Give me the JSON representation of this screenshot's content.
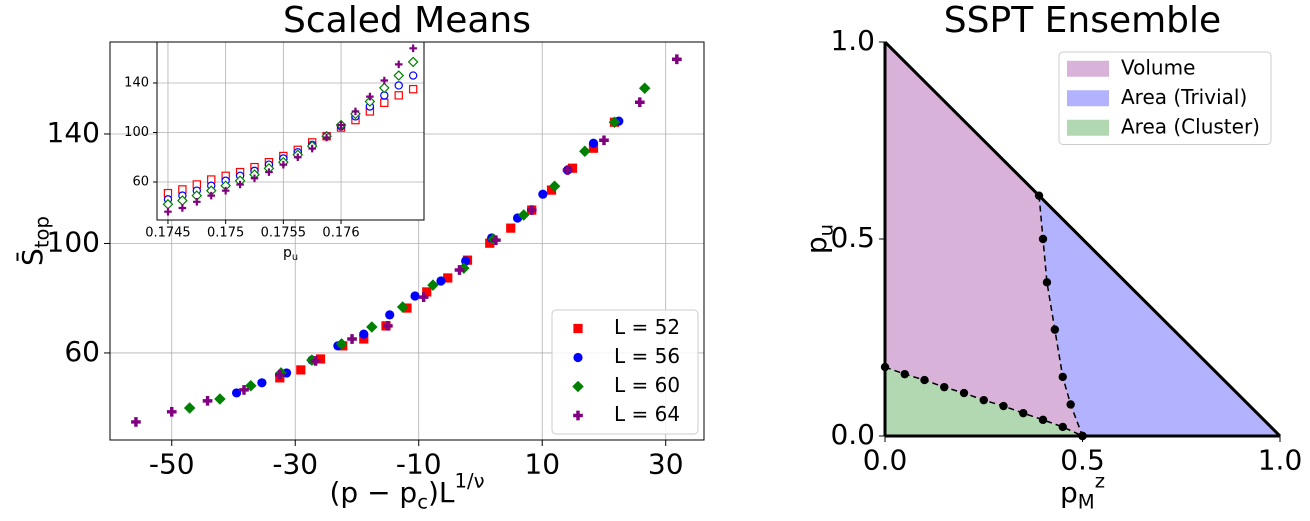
{
  "chart_data": [
    {
      "type": "scatter",
      "title": "Scaled Means",
      "xlabel": "(p − p_c)L^{1/ν}",
      "ylabel": "S̄_{top}",
      "xlim": [
        -60,
        36.2
      ],
      "ylim": [
        28.2,
        173.6
      ],
      "xticks": [
        -50,
        -30,
        -10,
        10,
        30
      ],
      "yticks": [
        60,
        100,
        140
      ],
      "grid": true,
      "legend": "lower right",
      "hollow": false,
      "series": [
        {
          "name": "L = 52",
          "color": "#ff0000",
          "marker": "square",
          "x": [
            -32.5,
            -29.1,
            -25.9,
            -22.3,
            -18.9,
            -15.3,
            -11.9,
            -8.7,
            -5.3,
            -2.1,
            1.5,
            4.9,
            8.3,
            11.5,
            14.9,
            18.3,
            21.7
          ],
          "values": [
            50.9,
            53.8,
            57.8,
            62.6,
            65.1,
            69.9,
            76.4,
            82.3,
            87.4,
            93.9,
            100.1,
            105.6,
            112.2,
            119.5,
            127.5,
            134.8,
            144.3
          ]
        },
        {
          "name": "L = 56",
          "color": "#0000ff",
          "marker": "circle",
          "x": [
            -39.5,
            -35.4,
            -31.4,
            -27.3,
            -23.1,
            -18.9,
            -14.7,
            -10.6,
            -6.4,
            -2.4,
            1.8,
            6.0,
            10.1,
            14.1,
            18.3,
            22.4
          ],
          "values": [
            45.4,
            49.1,
            52.7,
            57.4,
            62.6,
            66.9,
            73.9,
            80.8,
            86.3,
            93.6,
            102.0,
            109.3,
            118.0,
            126.8,
            136.6,
            144.7
          ]
        },
        {
          "name": "L = 60",
          "color": "#008000",
          "marker": "diamond",
          "x": [
            -47.1,
            -42.2,
            -37.2,
            -32.3,
            -27.3,
            -22.5,
            -17.6,
            -12.6,
            -7.7,
            -2.7,
            2.1,
            7.0,
            12.0,
            16.9,
            21.7,
            26.6
          ],
          "values": [
            39.9,
            43.2,
            48.0,
            52.7,
            57.4,
            63.3,
            69.5,
            76.8,
            84.8,
            91.0,
            101.6,
            110.4,
            120.9,
            133.7,
            144.3,
            156.7
          ]
        },
        {
          "name": "L = 64",
          "color": "#800080",
          "marker": "plus",
          "x": [
            -55.8,
            -50.0,
            -44.2,
            -38.3,
            -32.5,
            -26.7,
            -20.8,
            -15.0,
            -9.2,
            -3.4,
            2.5,
            8.3,
            14.1,
            20.0,
            25.8,
            31.8
          ],
          "values": [
            34.8,
            38.5,
            42.5,
            46.5,
            52.0,
            57.1,
            65.1,
            69.9,
            80.4,
            90.3,
            101.2,
            112.2,
            126.8,
            137.7,
            151.6,
            167.3
          ]
        }
      ]
    },
    {
      "type": "scatter",
      "xlabel": "p_u",
      "xlim": [
        0.174405,
        0.176719
      ],
      "ylim": [
        29.3,
        173.1
      ],
      "xticks": [
        0.1745,
        0.175,
        0.1755,
        0.176
      ],
      "yticks": [
        60,
        100,
        140
      ],
      "grid": true,
      "hollow": true,
      "x": [
        0.1745,
        0.174625,
        0.17475,
        0.174875,
        0.175,
        0.175125,
        0.17525,
        0.175375,
        0.1755,
        0.175625,
        0.17575,
        0.175875,
        0.176,
        0.176125,
        0.17625,
        0.176375,
        0.1765,
        0.176625
      ],
      "series": [
        {
          "color": "#ff0000",
          "marker": "square",
          "values": [
            51,
            54,
            58,
            62,
            65,
            68,
            72,
            76,
            81,
            86,
            92,
            97,
            104,
            110,
            117,
            124,
            130,
            135
          ]
        },
        {
          "color": "#0000ff",
          "marker": "circle",
          "values": [
            46,
            49,
            53,
            57,
            61,
            65,
            69,
            74,
            79,
            84,
            90,
            97,
            105,
            113,
            121,
            130,
            138,
            146
          ]
        },
        {
          "color": "#008000",
          "marker": "diamond",
          "values": [
            42,
            45,
            49,
            53,
            57,
            61,
            66,
            71,
            76,
            82,
            89,
            97,
            106,
            115,
            125,
            136,
            146,
            157
          ]
        },
        {
          "color": "#800080",
          "marker": "plus",
          "values": [
            36,
            39,
            44,
            49,
            53,
            58,
            63,
            68,
            74,
            80,
            87,
            96,
            106,
            117,
            129,
            142,
            155,
            168
          ]
        }
      ]
    },
    {
      "type": "phase",
      "title": "SSPT Ensemble",
      "xlabel": "p_M^z",
      "ylabel": "p_u",
      "xlim": [
        0,
        1
      ],
      "ylim": [
        0,
        1
      ],
      "xticks": [
        {
          "value": 0,
          "label": "0.0"
        },
        {
          "value": 0.5,
          "label": "0.5"
        },
        {
          "value": 1,
          "label": "1.0"
        }
      ],
      "yticks": [
        {
          "value": 0,
          "label": "0.0"
        },
        {
          "value": 0.5,
          "label": "0.5"
        },
        {
          "value": 1,
          "label": "1.0"
        }
      ],
      "legend": "upper right",
      "regions": [
        {
          "name": "Volume",
          "color": "#d8b2d8"
        },
        {
          "name": "Area (Trivial)",
          "color": "#b2b2ff"
        },
        {
          "name": "Area (Cluster)",
          "color": "#b2d8b2"
        }
      ],
      "boundaries": [
        {
          "x": [
            0.39,
            0.4,
            0.41,
            0.43,
            0.45,
            0.47,
            0.5
          ],
          "values": [
            0.61,
            0.5,
            0.39,
            0.27,
            0.15,
            0.08,
            0
          ]
        },
        {
          "x": [
            0,
            0.05,
            0.1,
            0.15,
            0.2,
            0.25,
            0.3,
            0.35,
            0.4,
            0.45,
            0.5
          ],
          "values": [
            0.175,
            0.157,
            0.142,
            0.124,
            0.109,
            0.091,
            0.076,
            0.058,
            0.041,
            0.023,
            0
          ]
        }
      ]
    }
  ]
}
